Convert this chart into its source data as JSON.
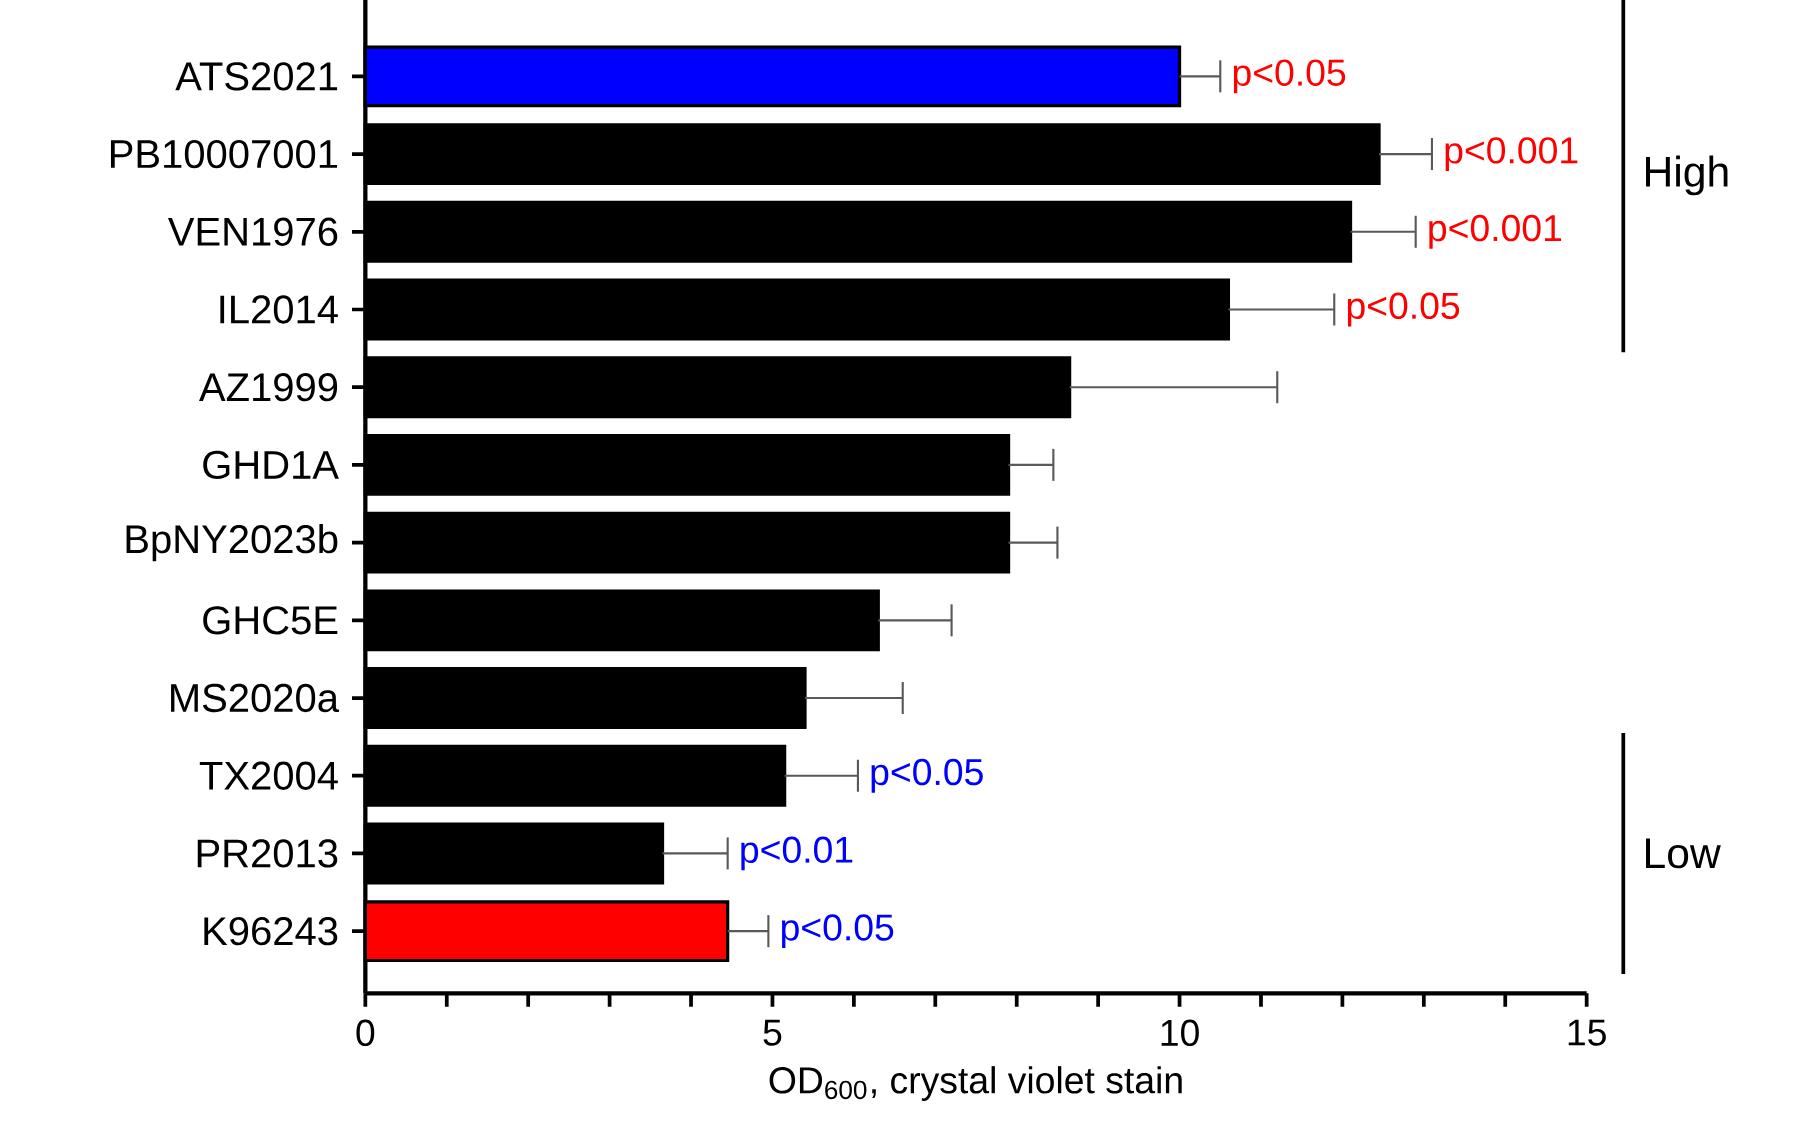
{
  "chart_data": {
    "type": "bar",
    "orientation": "horizontal",
    "xlabel": "OD$_{600}$, crystal violet stain",
    "categories": [
      "ATS2021",
      "PB10007001",
      "VEN1976",
      "IL2014",
      "AZ1999",
      "GHD1A",
      "BpNY2023b",
      "GHC5E",
      "MS2020a",
      "TX2004",
      "PR2013",
      "K96243"
    ],
    "values": [
      10.0,
      12.45,
      12.1,
      10.6,
      8.65,
      7.9,
      7.9,
      6.3,
      5.4,
      5.15,
      3.65,
      4.45
    ],
    "errors": [
      [
        10.0,
        10.5
      ],
      [
        12.45,
        13.1
      ],
      [
        12.1,
        12.9
      ],
      [
        10.6,
        11.9
      ],
      [
        8.65,
        11.2
      ],
      [
        7.9,
        8.45
      ],
      [
        7.9,
        8.5
      ],
      [
        6.3,
        7.2
      ],
      [
        5.4,
        6.6
      ],
      [
        5.15,
        6.05
      ],
      [
        3.65,
        4.45
      ],
      [
        4.45,
        4.95
      ]
    ],
    "colors": [
      "#0000ff",
      "#000000",
      "#000000",
      "#000000",
      "#000000",
      "#000000",
      "#000000",
      "#000000",
      "#000000",
      "#000000",
      "#000000",
      "#ff0000"
    ],
    "xlim": [
      0,
      15
    ],
    "xticks": [
      0,
      {
        "value": 1,
        "label": null
      },
      {
        "value": 2,
        "label": null
      },
      {
        "value": 3,
        "label": null
      },
      {
        "value": 4,
        "label": null
      },
      5,
      {
        "value": 6,
        "label": null
      },
      {
        "value": 7,
        "label": null
      },
      {
        "value": 8,
        "label": null
      },
      {
        "value": 9,
        "label": null
      },
      10,
      {
        "value": 11,
        "label": null
      },
      {
        "value": 12,
        "label": null
      },
      {
        "value": 13,
        "label": null
      },
      {
        "value": 14,
        "label": null
      },
      15
    ],
    "annotations": [
      {
        "text": "p<0.05",
        "x": 10.5,
        "y": "ATS2021"
      },
      {
        "text": "p<0.001",
        "x": 13.1,
        "y": "PB10007001"
      },
      {
        "text": "p<0.001",
        "x": 12.9,
        "y": "VEN1976"
      },
      {
        "text": "p<0.05",
        "x": 11.9,
        "y": "IL2014"
      },
      {
        "text": "p<0.05",
        "x": 6.05,
        "y": "TX2004"
      },
      {
        "text": "p<0.01",
        "x": 4.45,
        "y": "PR2013"
      },
      {
        "text": "p<0.05",
        "x": 4.95,
        "y": "K96243"
      },
      "High",
      "Low"
    ]
  }
}
